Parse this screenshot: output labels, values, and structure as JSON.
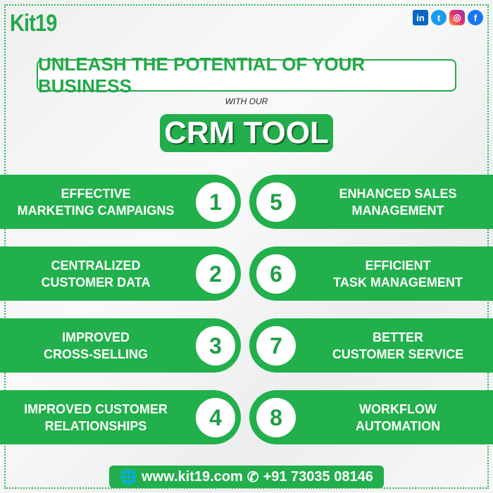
{
  "brand": {
    "logo": "Kit19",
    "accent": "#21b04b"
  },
  "social": [
    {
      "name": "linkedin",
      "glyph": "in"
    },
    {
      "name": "twitter",
      "glyph": "t"
    },
    {
      "name": "instagram",
      "glyph": "◎"
    },
    {
      "name": "facebook",
      "glyph": "f"
    }
  ],
  "header": {
    "headline": "UNLEASH THE POTENTIAL OF YOUR BUSINESS",
    "subline": "WITH OUR",
    "title": "CRM TOOL"
  },
  "features": [
    {
      "num": "1",
      "line1": "EFFECTIVE",
      "line2": "MARKETING CAMPAIGNS"
    },
    {
      "num": "2",
      "line1": "CENTRALIZED",
      "line2": "CUSTOMER DATA"
    },
    {
      "num": "3",
      "line1": "IMPROVED",
      "line2": "CROSS-SELLING"
    },
    {
      "num": "4",
      "line1": "IMPROVED CUSTOMER",
      "line2": "RELATIONSHIPS"
    },
    {
      "num": "5",
      "line1": "ENHANCED SALES",
      "line2": "MANAGEMENT"
    },
    {
      "num": "6",
      "line1": "EFFICIENT",
      "line2": "TASK MANAGEMENT"
    },
    {
      "num": "7",
      "line1": "BETTER",
      "line2": "CUSTOMER SERVICE"
    },
    {
      "num": "8",
      "line1": "WORKFLOW",
      "line2": "AUTOMATION"
    }
  ],
  "footer": {
    "website": "www.kit19.com",
    "phone": "+91 73035 08146",
    "globe_icon": "🌐",
    "phone_icon": "✆"
  }
}
